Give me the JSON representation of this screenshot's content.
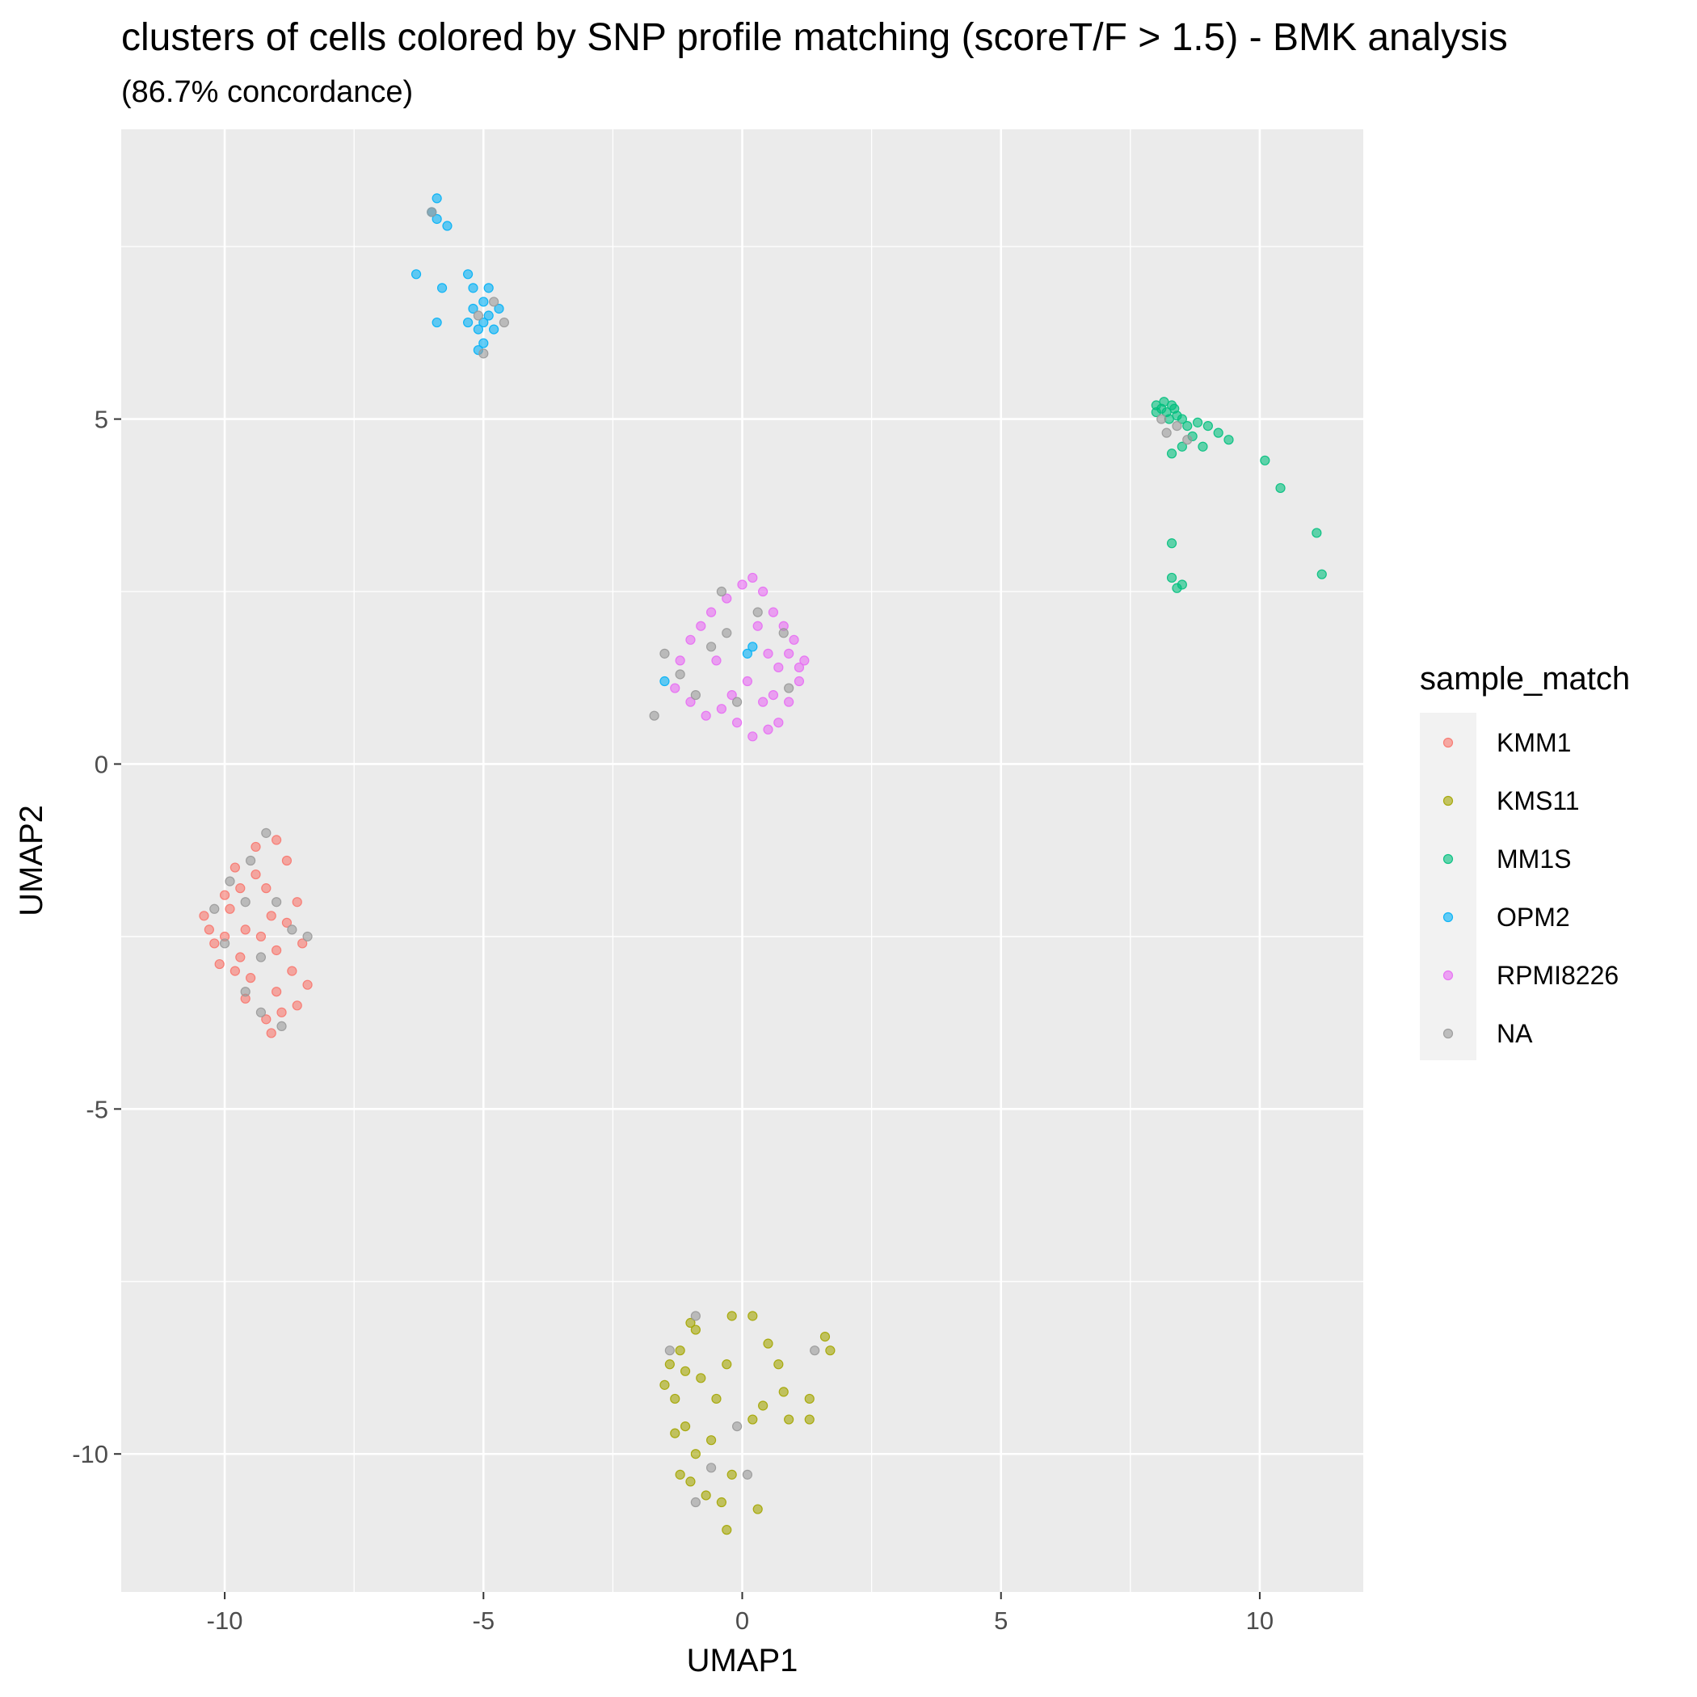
{
  "chart_data": {
    "type": "scatter",
    "title": "clusters of cells colored by SNP profile matching (scoreT/F > 1.5) - BMK analysis",
    "subtitle": "(86.7% concordance)",
    "xlabel": "UMAP1",
    "ylabel": "UMAP2",
    "xlim": [
      -12,
      12
    ],
    "ylim": [
      -12,
      9.2
    ],
    "x_ticks": [
      -10,
      -5,
      0,
      5,
      10
    ],
    "x_tick_labels": [
      "-10",
      "-5",
      "0",
      "5",
      "10"
    ],
    "y_ticks": [
      -10,
      -5,
      0,
      5
    ],
    "y_tick_labels": [
      "-10",
      "-5",
      "0",
      "5"
    ],
    "grid": true,
    "legend_title": "sample_match",
    "legend_position": "right",
    "series": [
      {
        "name": "KMM1",
        "color": "#F8766D",
        "points": [
          [
            -10.4,
            -2.2
          ],
          [
            -10.2,
            -2.6
          ],
          [
            -10.0,
            -1.9
          ],
          [
            -9.8,
            -1.5
          ],
          [
            -9.6,
            -2.4
          ],
          [
            -9.4,
            -1.2
          ],
          [
            -9.2,
            -1.8
          ],
          [
            -9.0,
            -2.7
          ],
          [
            -8.8,
            -1.4
          ],
          [
            -8.6,
            -2.0
          ],
          [
            -8.7,
            -3.0
          ],
          [
            -9.0,
            -3.3
          ],
          [
            -9.2,
            -3.7
          ],
          [
            -8.9,
            -3.6
          ],
          [
            -9.5,
            -3.1
          ],
          [
            -9.7,
            -2.8
          ],
          [
            -10.1,
            -2.9
          ],
          [
            -10.3,
            -2.4
          ],
          [
            -9.9,
            -2.1
          ],
          [
            -9.3,
            -2.5
          ],
          [
            -9.1,
            -2.2
          ],
          [
            -8.5,
            -2.6
          ],
          [
            -8.4,
            -3.2
          ],
          [
            -8.6,
            -3.5
          ],
          [
            -9.4,
            -1.6
          ],
          [
            -9.7,
            -1.8
          ],
          [
            -9.0,
            -1.1
          ],
          [
            -8.8,
            -2.3
          ],
          [
            -9.6,
            -3.4
          ],
          [
            -9.1,
            -3.9
          ],
          [
            -10.0,
            -2.5
          ],
          [
            -9.8,
            -3.0
          ]
        ]
      },
      {
        "name": "KMS11",
        "color": "#A3A500",
        "points": [
          [
            -1.2,
            -8.5
          ],
          [
            -1.0,
            -8.1
          ],
          [
            -0.8,
            -8.9
          ],
          [
            -1.3,
            -9.2
          ],
          [
            -1.5,
            -9.0
          ],
          [
            -1.1,
            -9.6
          ],
          [
            -0.9,
            -10.0
          ],
          [
            -1.2,
            -10.3
          ],
          [
            -0.7,
            -10.6
          ],
          [
            -0.6,
            -9.8
          ],
          [
            -0.5,
            -9.2
          ],
          [
            -0.3,
            -8.7
          ],
          [
            -0.2,
            -8.0
          ],
          [
            0.2,
            -8.0
          ],
          [
            0.5,
            -8.4
          ],
          [
            0.7,
            -8.7
          ],
          [
            0.8,
            -9.1
          ],
          [
            0.9,
            -9.5
          ],
          [
            1.3,
            -9.2
          ],
          [
            1.3,
            -9.5
          ],
          [
            1.6,
            -8.3
          ],
          [
            1.7,
            -8.5
          ],
          [
            0.4,
            -9.3
          ],
          [
            0.2,
            -9.5
          ],
          [
            0.3,
            -10.8
          ],
          [
            -0.3,
            -11.1
          ],
          [
            -1.0,
            -10.4
          ],
          [
            -1.3,
            -9.7
          ],
          [
            -1.4,
            -8.7
          ],
          [
            -0.9,
            -8.2
          ],
          [
            -1.1,
            -8.8
          ],
          [
            -0.4,
            -10.7
          ],
          [
            -0.2,
            -10.3
          ]
        ]
      },
      {
        "name": "MM1S",
        "color": "#00BF7D",
        "points": [
          [
            8.0,
            5.2
          ],
          [
            8.1,
            5.15
          ],
          [
            8.2,
            5.1
          ],
          [
            8.3,
            5.2
          ],
          [
            8.4,
            5.05
          ],
          [
            8.5,
            5.0
          ],
          [
            8.15,
            5.25
          ],
          [
            8.25,
            5.0
          ],
          [
            8.6,
            4.9
          ],
          [
            8.8,
            4.95
          ],
          [
            9.0,
            4.9
          ],
          [
            9.2,
            4.8
          ],
          [
            9.4,
            4.7
          ],
          [
            8.5,
            4.6
          ],
          [
            8.3,
            4.5
          ],
          [
            8.9,
            4.6
          ],
          [
            10.1,
            4.4
          ],
          [
            10.4,
            4.0
          ],
          [
            11.1,
            3.35
          ],
          [
            11.2,
            2.75
          ],
          [
            8.3,
            3.2
          ],
          [
            8.3,
            2.7
          ],
          [
            8.5,
            2.6
          ],
          [
            8.4,
            2.55
          ],
          [
            8.0,
            5.1
          ],
          [
            8.35,
            5.15
          ],
          [
            8.7,
            4.75
          ]
        ]
      },
      {
        "name": "OPM2",
        "color": "#00B0F6",
        "points": [
          [
            -5.9,
            8.2
          ],
          [
            -6.0,
            8.0
          ],
          [
            -5.9,
            7.9
          ],
          [
            -5.7,
            7.8
          ],
          [
            -6.3,
            7.1
          ],
          [
            -5.8,
            6.9
          ],
          [
            -5.3,
            7.1
          ],
          [
            -5.2,
            6.9
          ],
          [
            -5.0,
            6.7
          ],
          [
            -4.9,
            6.5
          ],
          [
            -5.1,
            6.3
          ],
          [
            -5.0,
            6.1
          ],
          [
            -4.8,
            6.3
          ],
          [
            -4.7,
            6.6
          ],
          [
            -5.2,
            6.6
          ],
          [
            -5.3,
            6.4
          ],
          [
            -5.9,
            6.4
          ],
          [
            -5.1,
            6.0
          ],
          [
            -4.9,
            6.9
          ],
          [
            -5.0,
            6.4
          ],
          [
            0.2,
            1.7
          ],
          [
            0.1,
            1.6
          ],
          [
            -1.5,
            1.2
          ]
        ]
      },
      {
        "name": "RPMI8226",
        "color": "#E76BF3",
        "points": [
          [
            0.0,
            2.6
          ],
          [
            0.2,
            2.7
          ],
          [
            0.4,
            2.5
          ],
          [
            0.6,
            2.2
          ],
          [
            0.8,
            2.0
          ],
          [
            1.0,
            1.8
          ],
          [
            1.2,
            1.5
          ],
          [
            1.1,
            1.2
          ],
          [
            0.9,
            0.9
          ],
          [
            0.7,
            0.6
          ],
          [
            0.5,
            0.5
          ],
          [
            0.2,
            0.4
          ],
          [
            -0.1,
            0.6
          ],
          [
            -0.4,
            0.8
          ],
          [
            -0.7,
            0.7
          ],
          [
            -1.0,
            0.9
          ],
          [
            -1.3,
            1.1
          ],
          [
            -1.2,
            1.5
          ],
          [
            -1.0,
            1.8
          ],
          [
            -0.8,
            2.0
          ],
          [
            -0.6,
            2.2
          ],
          [
            -0.3,
            2.4
          ],
          [
            0.3,
            2.0
          ],
          [
            0.5,
            1.6
          ],
          [
            0.7,
            1.4
          ],
          [
            0.1,
            1.2
          ],
          [
            -0.2,
            1.0
          ],
          [
            0.6,
            1.0
          ],
          [
            0.9,
            1.6
          ],
          [
            0.4,
            0.9
          ],
          [
            1.1,
            1.4
          ],
          [
            -0.5,
            1.5
          ]
        ]
      },
      {
        "name": "NA",
        "color": "#999999",
        "points": [
          [
            -9.2,
            -1.0
          ],
          [
            -9.5,
            -1.4
          ],
          [
            -9.9,
            -1.7
          ],
          [
            -10.2,
            -2.1
          ],
          [
            -9.6,
            -2.0
          ],
          [
            -9.3,
            -2.8
          ],
          [
            -8.7,
            -2.4
          ],
          [
            -8.4,
            -2.5
          ],
          [
            -8.9,
            -3.8
          ],
          [
            -9.3,
            -3.6
          ],
          [
            -9.6,
            -3.3
          ],
          [
            -10.0,
            -2.6
          ],
          [
            -9.0,
            -2.0
          ],
          [
            -5.0,
            5.95
          ],
          [
            -5.1,
            6.5
          ],
          [
            -4.8,
            6.7
          ],
          [
            -4.6,
            6.4
          ],
          [
            -6.0,
            8.0
          ],
          [
            -1.7,
            0.7
          ],
          [
            -1.5,
            1.6
          ],
          [
            -1.2,
            1.3
          ],
          [
            -0.9,
            1.0
          ],
          [
            -0.6,
            1.7
          ],
          [
            -0.4,
            2.5
          ],
          [
            0.3,
            2.2
          ],
          [
            0.8,
            1.9
          ],
          [
            0.9,
            1.1
          ],
          [
            -0.1,
            0.9
          ],
          [
            -0.3,
            1.9
          ],
          [
            8.1,
            5.0
          ],
          [
            8.2,
            4.8
          ],
          [
            8.4,
            4.9
          ],
          [
            8.6,
            4.7
          ],
          [
            -1.4,
            -8.5
          ],
          [
            -0.9,
            -8.0
          ],
          [
            -0.6,
            -10.2
          ],
          [
            -0.1,
            -9.6
          ],
          [
            1.4,
            -8.5
          ],
          [
            -0.9,
            -10.7
          ],
          [
            0.1,
            -10.3
          ]
        ]
      }
    ]
  }
}
